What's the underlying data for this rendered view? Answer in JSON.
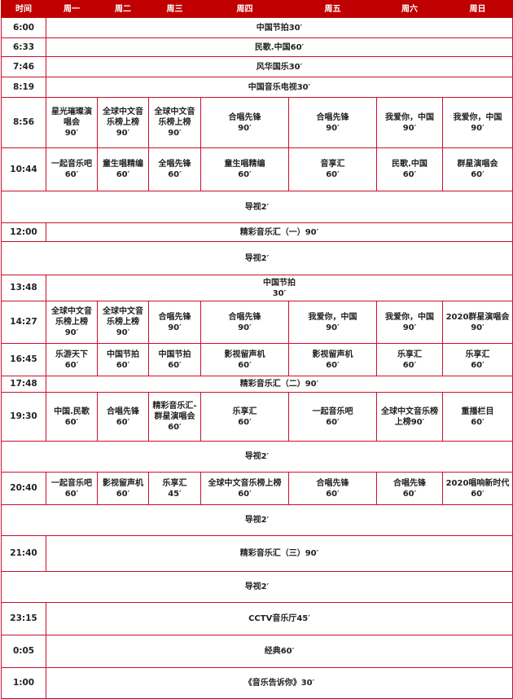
{
  "header": [
    "时间",
    "周一",
    "周二",
    "周三",
    "周四",
    "周五",
    "周六",
    "周日"
  ],
  "rows": [
    {
      "time": "6:00",
      "span": "中国节拍30′",
      "h": 25
    },
    {
      "time": "6:33",
      "span": "民歌.中国60′",
      "h": 23
    },
    {
      "time": "7:46",
      "span": "风华国乐30′",
      "h": 25
    },
    {
      "time": "8:19",
      "span": "中国音乐电视30′",
      "h": 25
    },
    {
      "time": "8:56",
      "cells": [
        "星光璀璨演\n唱会\n90′",
        "全球中文音\n乐榜上榜\n90′",
        "全球中文音\n乐榜上榜\n90′",
        "合唱先锋\n90′",
        "合唱先锋\n90′",
        "我爱你，中国\n90′",
        "我爱你，中国\n90′"
      ],
      "h": 62
    },
    {
      "time": "10:44",
      "cells": [
        "一起音乐吧\n60′",
        "童生唱精编\n60′",
        "全唱先锋\n60′",
        "童生唱精编\n60′",
        "音享汇\n60′",
        "民歌.中国\n60′",
        "群星演唱会\n60′"
      ],
      "h": 53
    },
    {
      "full": "导视2′",
      "h": 39
    },
    {
      "time": "12:00",
      "span": "精彩音乐汇（一）90′",
      "h": 23
    },
    {
      "full": "导视2′",
      "h": 41
    },
    {
      "time": "13:48",
      "span": "中国节拍\n30′",
      "h": 32
    },
    {
      "time": "14:27",
      "cells": [
        "全球中文音\n乐榜上榜\n90′",
        "全球中文音\n乐榜上榜\n90′",
        "合唱先锋\n90′",
        "合唱先锋\n90′",
        "我爱你，中国\n90′",
        "我爱你，中国\n90′",
        "2020群星演唱会\n90′"
      ],
      "h": 52
    },
    {
      "time": "16:45",
      "cells": [
        "乐游天下\n60′",
        "中国节拍\n60′",
        "中国节拍\n60′",
        "影视留声机\n60′",
        "影视留声机\n60′",
        "乐享汇\n60′",
        "乐享汇\n60′"
      ],
      "h": 40
    },
    {
      "time": "17:48",
      "span": "精彩音乐汇（二）90′",
      "h": 20
    },
    {
      "time": "19:30",
      "cells": [
        "中国.民歌\n60′",
        "合唱先锋\n60′",
        "精彩音乐汇-\n群星演唱会\n60′",
        "乐享汇\n60′",
        "一起音乐吧\n60′",
        "全球中文音乐榜\n上榜90′",
        "重播栏目\n60′"
      ],
      "h": 60
    },
    {
      "full": "导视2′",
      "h": 38
    },
    {
      "time": "20:40",
      "cells": [
        "一起音乐吧\n60′",
        "影视留声机\n60′",
        "乐享汇\n45′",
        "全球中文音乐榜上榜\n60′",
        "合唱先锋\n60′",
        "合唱先锋\n60′",
        "2020唱响新时代\n60′"
      ],
      "h": 40
    },
    {
      "full": "导视2′",
      "h": 38
    },
    {
      "time": "21:40",
      "span": "精彩音乐汇（三）90′",
      "h": 44
    },
    {
      "full": "导视2′",
      "h": 38
    },
    {
      "time": "23:15",
      "span": "CCTV音乐厅45′",
      "h": 40
    },
    {
      "time": "0:05",
      "span": "经典60′",
      "h": 40
    },
    {
      "time": "1:00",
      "span": "《音乐告诉你》30′",
      "h": 38
    }
  ]
}
